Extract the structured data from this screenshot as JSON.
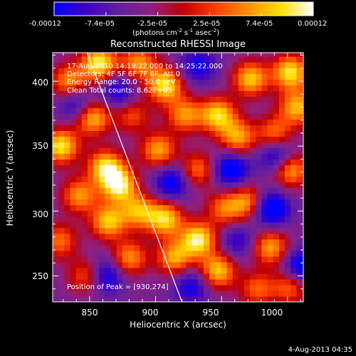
{
  "chart_data": {
    "type": "heatmap",
    "title": "Reconstructed RHESSI Image",
    "xlabel": "Heliocentric X (arcsec)",
    "ylabel": "Heliocentric Y (arcsec)",
    "xlim": [
      822,
      1012
    ],
    "ylim": [
      230,
      422
    ],
    "xticks": [
      850,
      900,
      950,
      1000
    ],
    "yticks": [
      250,
      300,
      350,
      400
    ],
    "grid": false,
    "colorbar": {
      "orientation": "horizontal",
      "placement": "top",
      "min": -0.00012,
      "max": 0.00012,
      "tick_labels": [
        "-0.00012",
        "-7.4e-05",
        "-2.5e-05",
        "2.5e-05",
        "7.4e-05",
        "0.00012"
      ],
      "unit_base": "(photons cm",
      "unit_exp1": "-2",
      "unit_mid": " s",
      "unit_exp2": "-1",
      "unit_mid2": " asec",
      "unit_exp3": "-2",
      "unit_end": ")",
      "colormap": [
        "#0000ff",
        "#4000c0",
        "#6020a0",
        "#902080",
        "#c00000",
        "#ff4000",
        "#ff9000",
        "#ffe000",
        "#ffffff"
      ]
    },
    "annotations": [
      "17-Aug-2010 14:19:22.000 to 14:25:22.000",
      "Detectors: 4F 5F 6F 7F 8F, Att 0",
      "Energy Range: 20.0 - 50.0 keV",
      "Clean     Total counts: 8.62E+03"
    ],
    "peak_label": "Position of Peak = [930,274]",
    "limb_line": {
      "x": [
        848,
        920
      ],
      "y": [
        422,
        230
      ]
    },
    "blobs": [
      {
        "x": 855,
        "y": 412,
        "v": 1.0
      },
      {
        "x": 832,
        "y": 398,
        "v": 0.7
      },
      {
        "x": 850,
        "y": 370,
        "v": 0.85
      },
      {
        "x": 826,
        "y": 348,
        "v": 0.95
      },
      {
        "x": 860,
        "y": 332,
        "v": 0.9
      },
      {
        "x": 840,
        "y": 310,
        "v": 0.7
      },
      {
        "x": 870,
        "y": 318,
        "v": 1.0
      },
      {
        "x": 862,
        "y": 290,
        "v": 0.85
      },
      {
        "x": 885,
        "y": 298,
        "v": 0.75
      },
      {
        "x": 905,
        "y": 292,
        "v": 0.9
      },
      {
        "x": 878,
        "y": 262,
        "v": 0.7
      },
      {
        "x": 912,
        "y": 262,
        "v": 0.75
      },
      {
        "x": 930,
        "y": 276,
        "v": 1.0
      },
      {
        "x": 945,
        "y": 252,
        "v": 0.85
      },
      {
        "x": 950,
        "y": 300,
        "v": 0.6
      },
      {
        "x": 968,
        "y": 305,
        "v": 0.7
      },
      {
        "x": 985,
        "y": 270,
        "v": 0.75
      },
      {
        "x": 1000,
        "y": 330,
        "v": 0.8
      },
      {
        "x": 988,
        "y": 358,
        "v": 0.6
      },
      {
        "x": 960,
        "y": 355,
        "v": 0.75
      },
      {
        "x": 945,
        "y": 372,
        "v": 0.9
      },
      {
        "x": 930,
        "y": 330,
        "v": 0.6
      },
      {
        "x": 970,
        "y": 400,
        "v": 0.85
      },
      {
        "x": 1000,
        "y": 405,
        "v": 0.95
      },
      {
        "x": 1005,
        "y": 378,
        "v": 0.8
      },
      {
        "x": 905,
        "y": 395,
        "v": 0.95
      },
      {
        "x": 920,
        "y": 372,
        "v": 0.7
      },
      {
        "x": 900,
        "y": 345,
        "v": 0.75
      },
      {
        "x": 885,
        "y": 412,
        "v": 0.7
      },
      {
        "x": 880,
        "y": 372,
        "v": 0.5
      },
      {
        "x": 1000,
        "y": 240,
        "v": 0.6
      },
      {
        "x": 845,
        "y": 248,
        "v": 0.55
      },
      {
        "x": 825,
        "y": 275,
        "v": 0.6
      },
      {
        "x": 975,
        "y": 238,
        "v": 0.55
      },
      {
        "x": 910,
        "y": 320,
        "v": -0.6
      },
      {
        "x": 870,
        "y": 390,
        "v": -0.5
      },
      {
        "x": 955,
        "y": 330,
        "v": -0.7
      },
      {
        "x": 925,
        "y": 240,
        "v": -0.5
      },
      {
        "x": 985,
        "y": 300,
        "v": -0.8
      },
      {
        "x": 990,
        "y": 340,
        "v": -0.6
      },
      {
        "x": 860,
        "y": 248,
        "v": -0.6
      },
      {
        "x": 838,
        "y": 380,
        "v": -0.5
      },
      {
        "x": 930,
        "y": 410,
        "v": -0.5
      },
      {
        "x": 1008,
        "y": 255,
        "v": -0.7
      },
      {
        "x": 960,
        "y": 275,
        "v": -0.4
      }
    ]
  },
  "footer": {
    "date_stamp": "4-Aug-2013 04:35"
  }
}
